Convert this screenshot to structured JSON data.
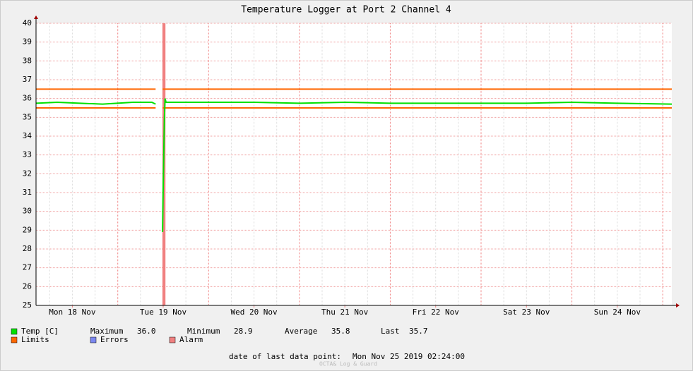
{
  "chart_data": {
    "type": "line",
    "title": "Temperature Logger at Port 2 Channel 4",
    "xlim": [
      "2019-11-18T02:24",
      "2019-11-25T02:24"
    ],
    "xticks": [
      {
        "value": "2019-11-18T12:00",
        "label": "Mon 18 Nov"
      },
      {
        "value": "2019-11-19T12:00",
        "label": "Tue 19 Nov"
      },
      {
        "value": "2019-11-20T12:00",
        "label": "Wed 20 Nov"
      },
      {
        "value": "2019-11-21T12:00",
        "label": "Thu 21 Nov"
      },
      {
        "value": "2019-11-22T12:00",
        "label": "Fri 22 Nov"
      },
      {
        "value": "2019-11-23T12:00",
        "label": "Sat 23 Nov"
      },
      {
        "value": "2019-11-24T12:00",
        "label": "Sun 24 Nov"
      }
    ],
    "ylim": [
      25,
      40
    ],
    "yticks": [
      25,
      26,
      27,
      28,
      29,
      30,
      31,
      32,
      33,
      34,
      35,
      36,
      37,
      38,
      39,
      40
    ],
    "grid": true,
    "series": [
      {
        "name": "Temp [C]",
        "color": "#00e000",
        "x": [
          "2019-11-18T02:24",
          "2019-11-18T08:00",
          "2019-11-18T14:00",
          "2019-11-18T20:00",
          "2019-11-19T04:00",
          "2019-11-19T09:00",
          "2019-11-19T10:00",
          "2019-11-19T10:30",
          "2019-11-19T11:50",
          "2019-11-19T12:00",
          "2019-11-19T12:10",
          "2019-11-19T12:20",
          "2019-11-19T12:30",
          "2019-11-19T12:45",
          "2019-11-20T00:00",
          "2019-11-20T12:00",
          "2019-11-21T00:00",
          "2019-11-21T12:00",
          "2019-11-22T00:00",
          "2019-11-22T12:00",
          "2019-11-23T00:00",
          "2019-11-23T12:00",
          "2019-11-24T00:00",
          "2019-11-24T12:00",
          "2019-11-25T02:24"
        ],
        "values": [
          35.75,
          35.8,
          35.75,
          35.7,
          35.8,
          35.8,
          35.7,
          null,
          28.9,
          31.3,
          33.2,
          35.0,
          36.0,
          35.8,
          35.8,
          35.8,
          35.75,
          35.8,
          35.75,
          35.75,
          35.75,
          35.75,
          35.8,
          35.75,
          35.7
        ]
      }
    ],
    "limits": {
      "name": "Limits",
      "color": "#ff6600",
      "x": [
        "2019-11-18T02:24",
        "2019-11-19T10:00",
        "2019-11-19T10:30",
        "2019-11-19T11:50",
        "2019-11-25T02:24"
      ],
      "upper": [
        36.5,
        36.5,
        null,
        36.5,
        36.5
      ],
      "lower": [
        35.5,
        35.5,
        null,
        35.5,
        35.5
      ]
    },
    "errors": {
      "name": "Errors",
      "color": "#7b87f0"
    },
    "alarm": {
      "name": "Alarm",
      "color": "#f08080",
      "start": "2019-11-19T11:48",
      "end": "2019-11-19T12:36"
    },
    "stats": [
      {
        "label": "Maximum",
        "value": "36.0"
      },
      {
        "label": "Minimum",
        "value": "28.9"
      },
      {
        "label": "Average",
        "value": "35.8"
      },
      {
        "label": "Last",
        "value": "35.7"
      }
    ],
    "footer_label": "date of last data point:",
    "footer_value": "Mon Nov 25 2019 02:24:00",
    "watermark": "OCTA& Log & Guard"
  }
}
